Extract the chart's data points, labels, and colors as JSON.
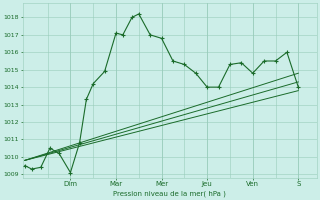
{
  "background_color": "#cceee8",
  "grid_color": "#99ccbb",
  "line_color": "#1a6b2a",
  "xlabel": "Pression niveau de la mer( hPa )",
  "ylim": [
    1008.8,
    1018.8
  ],
  "yticks": [
    1009,
    1010,
    1011,
    1012,
    1013,
    1014,
    1015,
    1016,
    1017,
    1018
  ],
  "day_labels": [
    "Dim",
    "Mar",
    "Mer",
    "Jeu",
    "Ven",
    "S"
  ],
  "day_positions": [
    2,
    4,
    6,
    8,
    10,
    12
  ],
  "xlim": [
    -0.1,
    12.8
  ],
  "series_main": {
    "x": [
      0,
      0.3,
      0.7,
      1.1,
      1.5,
      2.0,
      2.4,
      2.7,
      3.0,
      3.5,
      4.0,
      4.3,
      4.7,
      5.0,
      5.5,
      6.0,
      6.5,
      7.0,
      7.5,
      8.0,
      8.5,
      9.0,
      9.5,
      10.0,
      10.5,
      11.0,
      11.5,
      12.0
    ],
    "y": [
      1009.5,
      1009.3,
      1009.4,
      1010.5,
      1010.2,
      1009.1,
      1010.8,
      1013.3,
      1014.2,
      1014.9,
      1017.1,
      1017.0,
      1018.0,
      1018.2,
      1017.0,
      1016.8,
      1015.5,
      1015.3,
      1014.8,
      1014.0,
      1014.0,
      1015.3,
      1015.4,
      1014.8,
      1015.5,
      1015.5,
      1016.0,
      1014.0
    ]
  },
  "series_lines": [
    {
      "x": [
        0,
        12.0
      ],
      "y": [
        1009.8,
        1013.8
      ]
    },
    {
      "x": [
        0,
        12.0
      ],
      "y": [
        1009.8,
        1014.3
      ]
    },
    {
      "x": [
        0,
        12.0
      ],
      "y": [
        1009.8,
        1014.8
      ]
    }
  ]
}
